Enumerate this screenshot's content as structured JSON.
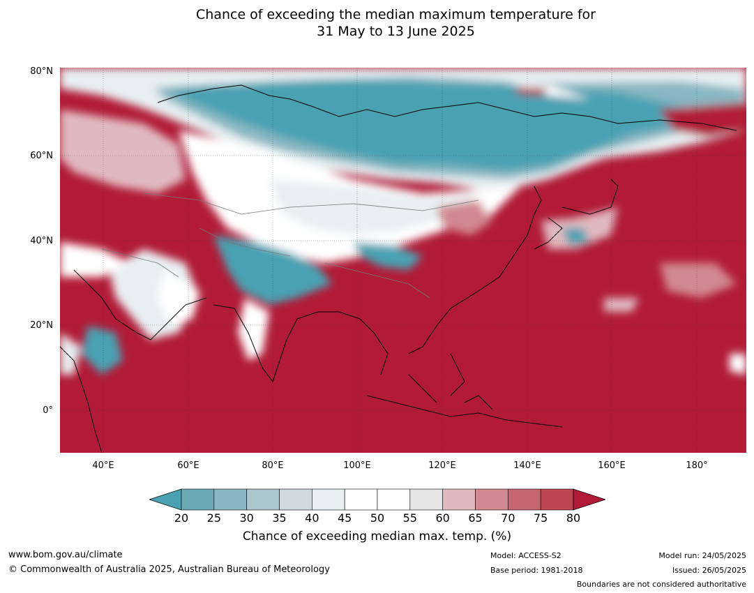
{
  "title": {
    "line1": "Chance of exceeding the median maximum temperature for",
    "line2": "31 May to 13 June 2025"
  },
  "map": {
    "lat_labels": [
      "80°N",
      "60°N",
      "40°N",
      "20°N",
      "0°"
    ],
    "lon_labels": [
      "40°E",
      "60°E",
      "80°E",
      "100°E",
      "120°E",
      "140°E",
      "160°E",
      "180°"
    ]
  },
  "colorbar": {
    "ticks": [
      "20",
      "25",
      "30",
      "35",
      "40",
      "45",
      "50",
      "55",
      "60",
      "65",
      "70",
      "75",
      "80"
    ],
    "colors": [
      "#4aa1b2",
      "#6aa8b6",
      "#89b7c3",
      "#aac5cb",
      "#d0d9dc",
      "#e8eff1",
      "#ffffff",
      "#ffffff",
      "#e6e6e6",
      "#e0b9bf",
      "#d28890",
      "#c66672",
      "#be4554",
      "#b11b37"
    ],
    "title": "Chance of exceeding median max. temp. (%)"
  },
  "footer": {
    "url": "www.bom.gov.au/climate",
    "copyright": "© Commonwealth of Australia 2025, Australian Bureau of Meteorology",
    "model": "Model: ACCESS-S2",
    "base_period": "Base period: 1981-2018",
    "model_run": "Model run: 24/05/2025",
    "issued": "Issued: 26/05/2025",
    "disclaimer": "Boundaries are not considered authoritative"
  },
  "colors": {
    "below": "#4aa1b2",
    "above": "#b11b37",
    "neutral": "#ffffff"
  }
}
